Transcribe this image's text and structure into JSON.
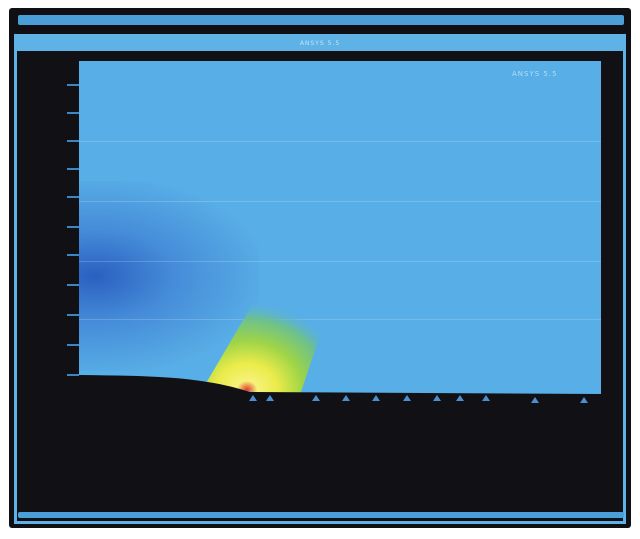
{
  "window": {
    "title": "ANSYS 5.5",
    "tag": "ANSYS 5.5"
  },
  "axis": {
    "tick_labels": [
      "",
      "",
      "",
      "",
      "",
      "",
      "",
      "",
      "",
      "",
      ""
    ]
  },
  "colors": {
    "background": "#101014",
    "frame_border": "#5fb2e6",
    "plot_field": "#58aee6",
    "stress_low": "#2252ba",
    "stress_mid": "#8fd14f",
    "stress_high": "#f2ea4e",
    "stress_peak": "#e03a2a",
    "ground": "#111115"
  },
  "supports": {
    "count": 13
  }
}
